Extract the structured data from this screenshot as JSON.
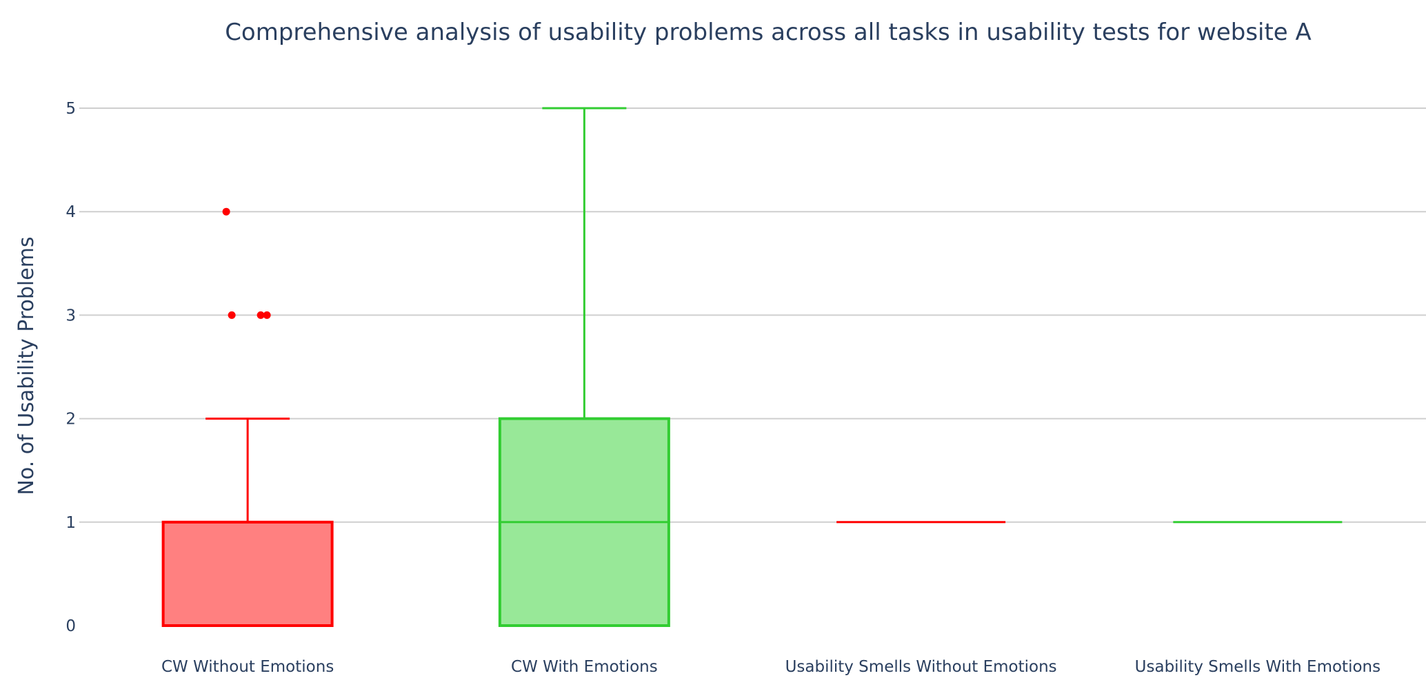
{
  "chart_data": {
    "type": "box",
    "title": "Comprehensive analysis of usability problems across all tasks in usability tests for website A",
    "ylabel": "No. of Usability Problems",
    "xlabel": "",
    "ylim": [
      0,
      5
    ],
    "yticks": [
      "0",
      "1",
      "2",
      "3",
      "4",
      "5"
    ],
    "grid": true,
    "categories": [
      "CW Without Emotions",
      "CW With Emotions",
      "Usability Smells Without Emotions",
      "Usability Smells With Emotions"
    ],
    "series": [
      {
        "category": "CW Without Emotions",
        "color": "#ff0000",
        "fill": "#ff8080",
        "min": 0,
        "q1": 0,
        "median": 1,
        "q3": 1,
        "max": 2,
        "outliers": [
          4,
          3,
          3,
          3
        ]
      },
      {
        "category": "CW With Emotions",
        "color": "#32cd32",
        "fill": "#98e898",
        "min": 0,
        "q1": 0,
        "median": 1,
        "q3": 2,
        "max": 5,
        "outliers": []
      },
      {
        "category": "Usability Smells Without Emotions",
        "color": "#ff0000",
        "fill": "#ff8080",
        "min": 1,
        "q1": 1,
        "median": 1,
        "q3": 1,
        "max": 1,
        "outliers": []
      },
      {
        "category": "Usability Smells With Emotions",
        "color": "#32cd32",
        "fill": "#98e898",
        "min": 1,
        "q1": 1,
        "median": 1,
        "q3": 1,
        "max": 1,
        "outliers": []
      }
    ]
  }
}
